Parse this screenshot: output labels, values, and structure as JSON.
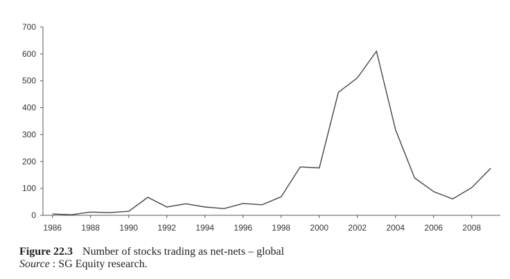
{
  "chart_data": {
    "type": "line",
    "title": "",
    "xlabel": "",
    "ylabel": "",
    "xlim": [
      1985.5,
      2009.5
    ],
    "ylim": [
      0,
      700
    ],
    "x": [
      1986,
      1987,
      1988,
      1989,
      1990,
      1991,
      1992,
      1993,
      1994,
      1995,
      1996,
      1997,
      1998,
      1999,
      2000,
      2001,
      2002,
      2003,
      2004,
      2005,
      2006,
      2007,
      2008,
      2009
    ],
    "series": [
      {
        "values": [
          5,
          2,
          12,
          10,
          15,
          67,
          31,
          43,
          31,
          25,
          44,
          39,
          69,
          180,
          176,
          457,
          511,
          610,
          318,
          139,
          88,
          61,
          103,
          175
        ]
      }
    ],
    "xticks": [
      1986,
      1988,
      1990,
      1992,
      1994,
      1996,
      1998,
      2000,
      2002,
      2004,
      2006,
      2008
    ],
    "yticks": [
      0,
      100,
      200,
      300,
      400,
      500,
      600,
      700
    ],
    "grid": false,
    "legend": "none",
    "line_color": "#444444",
    "axis_color": "#555555"
  },
  "caption": {
    "figure_label": "Figure  22.3",
    "figure_text": "Number of stocks trading as net-nets – global",
    "source_label": "Source",
    "source_text": ": SG Equity research."
  }
}
